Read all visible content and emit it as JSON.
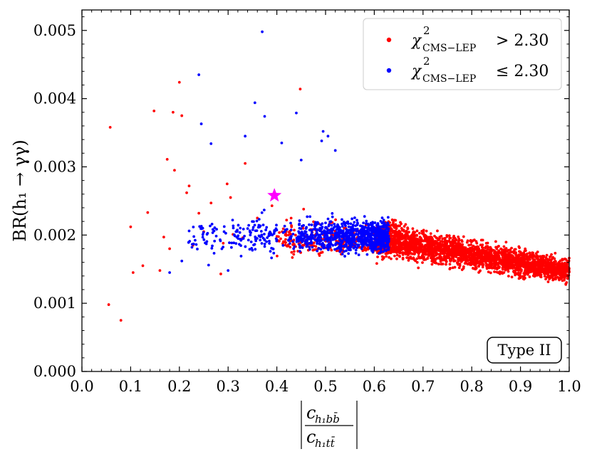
{
  "chart_data": {
    "type": "scatter",
    "title": "",
    "xlabel": "|c_{h1 b b̄} / c_{h1 t t̄}|",
    "xlabel_numerator": "c",
    "xlabel_numerator_sub": "h₁bb̄",
    "xlabel_denominator": "c",
    "xlabel_denominator_sub": "h₁tt̄",
    "ylabel": "BR(h₁ → γγ)",
    "xlim": [
      0.0,
      1.0
    ],
    "ylim": [
      0.0,
      0.0053
    ],
    "x_ticks": [
      0.0,
      0.1,
      0.2,
      0.3,
      0.4,
      0.5,
      0.6,
      0.7,
      0.8,
      0.9,
      1.0
    ],
    "x_tick_labels": [
      "0.0",
      "0.1",
      "0.2",
      "0.3",
      "0.4",
      "0.5",
      "0.6",
      "0.7",
      "0.8",
      "0.9",
      "1.0"
    ],
    "y_ticks": [
      0.0,
      0.001,
      0.002,
      0.003,
      0.004,
      0.005
    ],
    "y_tick_labels": [
      "0.000",
      "0.001",
      "0.002",
      "0.003",
      "0.004",
      "0.005"
    ],
    "grid": false,
    "legend_position": "top-right",
    "series": [
      {
        "name": "χ²_CMS−LEP > 2.30",
        "legend_main": "χ",
        "legend_sup": "2",
        "legend_sub": "CMS−LEP",
        "legend_rel": "> 2.30",
        "color": "#ff0000",
        "highlight_points": [
          [
            0.055,
            0.00098
          ],
          [
            0.058,
            0.00358
          ],
          [
            0.08,
            0.00075
          ],
          [
            0.1,
            0.00212
          ],
          [
            0.105,
            0.00145
          ],
          [
            0.125,
            0.00155
          ],
          [
            0.135,
            0.00233
          ],
          [
            0.148,
            0.00382
          ],
          [
            0.16,
            0.00148
          ],
          [
            0.168,
            0.00197
          ],
          [
            0.175,
            0.00311
          ],
          [
            0.18,
            0.0018
          ],
          [
            0.187,
            0.0038
          ],
          [
            0.19,
            0.00295
          ],
          [
            0.2,
            0.00424
          ],
          [
            0.205,
            0.00375
          ],
          [
            0.215,
            0.00262
          ],
          [
            0.22,
            0.00272
          ],
          [
            0.228,
            0.00185
          ],
          [
            0.24,
            0.00232
          ],
          [
            0.265,
            0.00247
          ],
          [
            0.285,
            0.00143
          ],
          [
            0.298,
            0.00275
          ],
          [
            0.31,
            0.00201
          ],
          [
            0.335,
            0.00305
          ],
          [
            0.39,
            0.00243
          ],
          [
            0.448,
            0.00414
          ],
          [
            0.305,
            0.00255
          ],
          [
            0.36,
            0.00225
          ],
          [
            0.33,
            0.00196
          ],
          [
            0.29,
            0.00188
          ],
          [
            0.25,
            0.00205
          ],
          [
            0.42,
            0.00222
          ],
          [
            0.455,
            0.00238
          ],
          [
            0.48,
            0.00207
          ]
        ],
        "bulk_regions": [
          {
            "x": [
              0.4,
              0.64
            ],
            "y": [
              0.00135,
              0.0025
            ],
            "count": 260
          },
          {
            "x": [
              0.6,
              1.0
            ],
            "y": [
              0.00125,
              0.0025
            ],
            "count": 2600
          }
        ]
      },
      {
        "name": "χ²_CMS−LEP ≤ 2.30",
        "legend_main": "χ",
        "legend_sup": "2",
        "legend_sub": "CMS−LEP",
        "legend_rel": "≤ 2.30",
        "color": "#0000ff",
        "highlight_points": [
          [
            0.37,
            0.00498
          ],
          [
            0.24,
            0.00435
          ],
          [
            0.355,
            0.00394
          ],
          [
            0.375,
            0.00374
          ],
          [
            0.44,
            0.00379
          ],
          [
            0.245,
            0.00363
          ],
          [
            0.265,
            0.00334
          ],
          [
            0.335,
            0.00345
          ],
          [
            0.41,
            0.00335
          ],
          [
            0.495,
            0.00352
          ],
          [
            0.505,
            0.00345
          ],
          [
            0.18,
            0.00145
          ],
          [
            0.22,
            0.00206
          ],
          [
            0.205,
            0.00162
          ],
          [
            0.26,
            0.00156
          ],
          [
            0.3,
            0.00148
          ],
          [
            0.45,
            0.0031
          ],
          [
            0.492,
            0.00338
          ],
          [
            0.52,
            0.00324
          ]
        ],
        "bulk_regions": [
          {
            "x": [
              0.2,
              0.4
            ],
            "y": [
              0.0015,
              0.003
            ],
            "count": 150
          },
          {
            "x": [
              0.4,
              0.63
            ],
            "y": [
              0.0014,
              0.0029
            ],
            "count": 850
          }
        ]
      }
    ],
    "benchmark_star": {
      "x": 0.395,
      "y": 0.00258,
      "color": "#ff00ff"
    },
    "annotation": "Type II"
  }
}
